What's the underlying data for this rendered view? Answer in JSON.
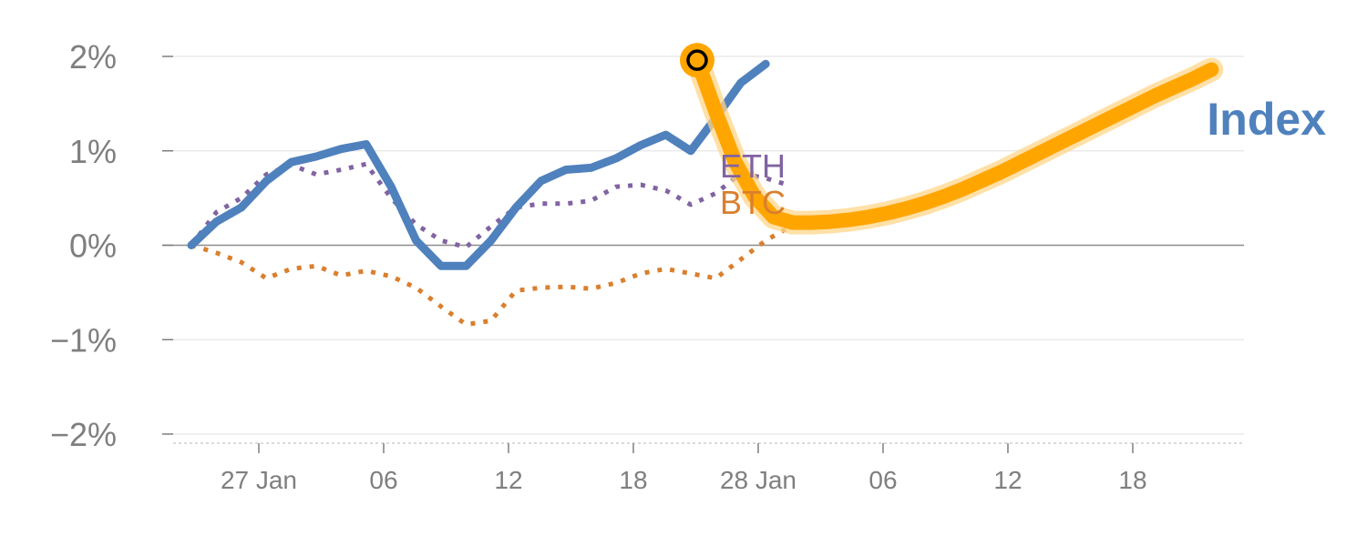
{
  "chart_data": {
    "type": "line",
    "title": "",
    "xlabel": "",
    "ylabel": "",
    "ylim": [
      -2,
      2
    ],
    "y_ticks": [
      {
        "value": 2,
        "label": "2%"
      },
      {
        "value": 1,
        "label": "1%"
      },
      {
        "value": 0,
        "label": "0%"
      },
      {
        "value": -1,
        "label": "−1%"
      },
      {
        "value": -2,
        "label": "−2%"
      }
    ],
    "x_tick_labels": [
      "27 Jan",
      "06",
      "12",
      "18",
      "28 Jan",
      "06",
      "12",
      "18"
    ],
    "grid": true,
    "series": [
      {
        "name": "Index",
        "color": "#4f81bd",
        "style": "solid",
        "values": [
          0.0,
          0.25,
          0.4,
          0.68,
          0.88,
          0.94,
          1.02,
          1.07,
          0.62,
          0.05,
          -0.22,
          -0.22,
          0.05,
          0.4,
          0.68,
          0.8,
          0.82,
          0.92,
          1.06,
          1.17,
          1.0,
          1.35,
          1.72,
          1.92
        ]
      },
      {
        "name": "ETH",
        "color": "#8064a2",
        "style": "dotted",
        "values": [
          0.0,
          0.35,
          0.5,
          0.75,
          0.85,
          0.75,
          0.8,
          0.86,
          0.5,
          0.22,
          0.05,
          -0.02,
          0.2,
          0.4,
          0.44,
          0.44,
          0.47,
          0.62,
          0.64,
          0.58,
          0.43,
          0.55,
          0.76,
          0.71,
          0.63
        ]
      },
      {
        "name": "BTC",
        "color": "#d97f2e",
        "style": "dotted",
        "values": [
          0.0,
          -0.08,
          -0.18,
          -0.35,
          -0.25,
          -0.22,
          -0.32,
          -0.27,
          -0.33,
          -0.45,
          -0.65,
          -0.84,
          -0.8,
          -0.48,
          -0.45,
          -0.44,
          -0.46,
          -0.4,
          -0.3,
          -0.25,
          -0.3,
          -0.35,
          -0.15,
          0.05,
          0.2
        ]
      }
    ],
    "highlight": {
      "color": "#ffa500",
      "start_value": 1.96,
      "trend_values": [
        1.96,
        1.4,
        0.88,
        0.52,
        0.3,
        0.24,
        0.24,
        0.25,
        0.27,
        0.3,
        0.34,
        0.39,
        0.45,
        0.52,
        0.6,
        0.69,
        0.78,
        0.88,
        0.98,
        1.08,
        1.18,
        1.28,
        1.38,
        1.48,
        1.58,
        1.67,
        1.76,
        1.86
      ]
    }
  }
}
